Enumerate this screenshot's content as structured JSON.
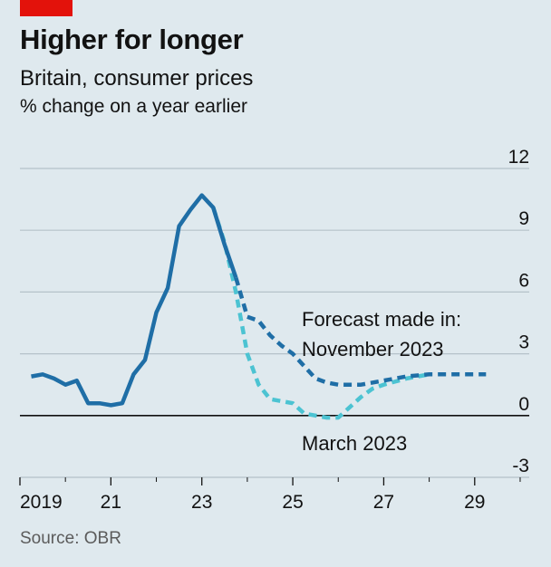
{
  "header": {
    "title": "Higher for longer",
    "subtitle": "Britain, consumer prices",
    "unit": "% change on a year earlier"
  },
  "footer": {
    "source": "Source: OBR"
  },
  "colors": {
    "accent_red": "#e3120b",
    "outturn": "#1f6ea6",
    "nov_forecast": "#1f6ea6",
    "mar_forecast": "#4cc3d2",
    "grid": "#b5c2c9",
    "background": "#dfe9ee"
  },
  "chart_data": {
    "type": "line",
    "title": "Higher for longer",
    "subtitle": "Britain, consumer prices",
    "ylabel": "% change on a year earlier",
    "xlim": [
      2019,
      2030.2
    ],
    "ylim": [
      -3,
      12
    ],
    "y_ticks": [
      12,
      9,
      6,
      3,
      0,
      -3
    ],
    "x_ticks": [
      {
        "value": 2019,
        "label": "2019"
      },
      {
        "value": 2021,
        "label": "21"
      },
      {
        "value": 2023,
        "label": "23"
      },
      {
        "value": 2025,
        "label": "25"
      },
      {
        "value": 2027,
        "label": "27"
      },
      {
        "value": 2029,
        "label": "29"
      }
    ],
    "grid": true,
    "series": [
      {
        "key": "outturn",
        "style": "solid",
        "points": [
          [
            2019.25,
            1.9
          ],
          [
            2019.5,
            2.0
          ],
          [
            2019.75,
            1.8
          ],
          [
            2020.0,
            1.5
          ],
          [
            2020.25,
            1.7
          ],
          [
            2020.5,
            0.6
          ],
          [
            2020.75,
            0.6
          ],
          [
            2021.0,
            0.5
          ],
          [
            2021.25,
            0.6
          ],
          [
            2021.5,
            2.0
          ],
          [
            2021.75,
            2.7
          ],
          [
            2022.0,
            5.0
          ],
          [
            2022.25,
            6.2
          ],
          [
            2022.5,
            9.2
          ],
          [
            2022.75,
            10.0
          ],
          [
            2023.0,
            10.7
          ],
          [
            2023.25,
            10.1
          ],
          [
            2023.5,
            8.3
          ],
          [
            2023.75,
            6.7
          ]
        ]
      },
      {
        "key": "nov_forecast",
        "name": "November 2023",
        "style": "dashed",
        "points": [
          [
            2023.75,
            6.7
          ],
          [
            2024.0,
            4.8
          ],
          [
            2024.25,
            4.6
          ],
          [
            2024.5,
            3.9
          ],
          [
            2024.75,
            3.4
          ],
          [
            2025.0,
            3.0
          ],
          [
            2025.25,
            2.4
          ],
          [
            2025.5,
            1.8
          ],
          [
            2025.75,
            1.6
          ],
          [
            2026.0,
            1.5
          ],
          [
            2026.5,
            1.5
          ],
          [
            2027.0,
            1.7
          ],
          [
            2027.5,
            1.9
          ],
          [
            2028.0,
            2.0
          ],
          [
            2028.5,
            2.0
          ],
          [
            2029.0,
            2.0
          ],
          [
            2029.25,
            2.0
          ]
        ]
      },
      {
        "key": "mar_forecast",
        "name": "March 2023",
        "style": "dashed",
        "points": [
          [
            2023.25,
            10.1
          ],
          [
            2023.5,
            8.4
          ],
          [
            2023.75,
            6.0
          ],
          [
            2024.0,
            3.0
          ],
          [
            2024.25,
            1.5
          ],
          [
            2024.5,
            0.8
          ],
          [
            2024.75,
            0.7
          ],
          [
            2025.0,
            0.6
          ],
          [
            2025.25,
            0.1
          ],
          [
            2025.5,
            0.0
          ],
          [
            2025.75,
            -0.1
          ],
          [
            2026.0,
            -0.1
          ],
          [
            2026.25,
            0.4
          ],
          [
            2026.5,
            0.9
          ],
          [
            2026.75,
            1.3
          ],
          [
            2027.0,
            1.5
          ],
          [
            2027.5,
            1.8
          ],
          [
            2028.0,
            2.0
          ]
        ]
      }
    ],
    "annotations": {
      "forecast_intro": "Forecast made in:",
      "nov_label": "November 2023",
      "mar_label": "March 2023"
    }
  }
}
